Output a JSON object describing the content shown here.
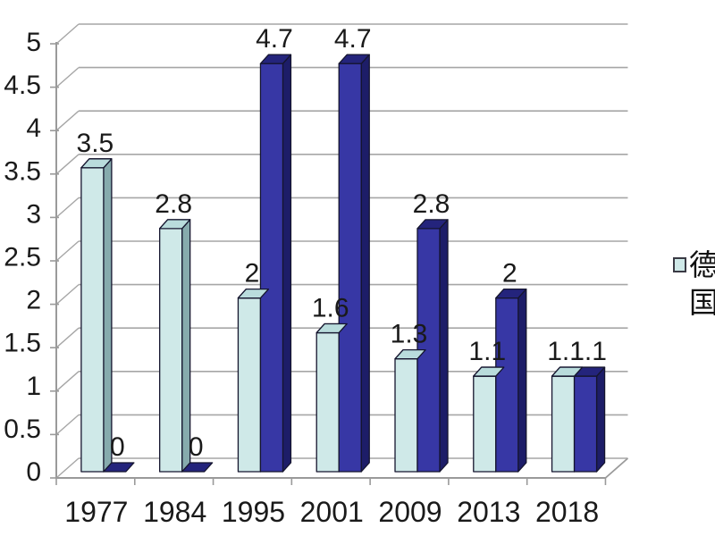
{
  "chart_data": {
    "type": "bar",
    "subtype": "3d-clustered-column",
    "title": "",
    "xlabel": "",
    "ylabel": "",
    "categories": [
      "1977",
      "1984",
      "1995",
      "2001",
      "2009",
      "2013",
      "2018"
    ],
    "series": [
      {
        "name": "德国",
        "values": [
          3.5,
          2.8,
          2,
          1.6,
          1.3,
          1.1,
          1.1
        ],
        "colors": {
          "front": "#cfe9e8",
          "top": "#b9dcdc",
          "side": "#86abad"
        }
      },
      {
        "name": "",
        "values": [
          0,
          0,
          4.7,
          4.7,
          2.8,
          2,
          1.1
        ],
        "colors": {
          "front": "#3737a5",
          "top": "#24247c",
          "side": "#1d1d68"
        }
      }
    ],
    "data_labels_shown": true,
    "y_ticks": [
      0,
      0.5,
      1,
      1.5,
      2,
      2.5,
      3,
      3.5,
      4,
      4.5,
      5
    ],
    "ylim": [
      0,
      5
    ],
    "grid": true,
    "legend_position": "right",
    "style": {
      "grid_color": "#a6a6a6",
      "axis_color": "#9a9a9a",
      "text_color": "#1a1a1a",
      "bar_outline_color": "#15152e",
      "background": "#ffffff"
    }
  }
}
